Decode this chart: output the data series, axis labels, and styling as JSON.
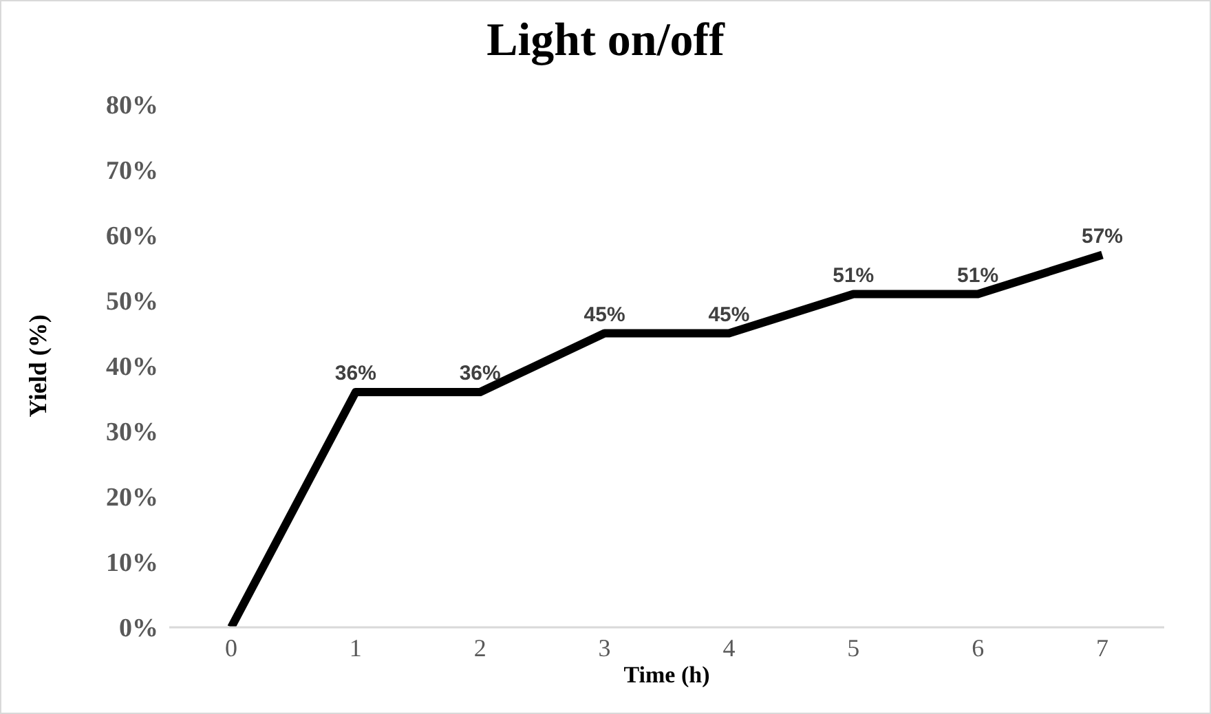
{
  "chart_data": {
    "type": "line",
    "title": "Light on/off",
    "xlabel": "Time (h)",
    "ylabel": "Yield (%)",
    "categories": [
      "0",
      "1",
      "2",
      "3",
      "4",
      "5",
      "6",
      "7"
    ],
    "series": [
      {
        "color": "#000000",
        "values": [
          0,
          36,
          36,
          45,
          45,
          51,
          51,
          57
        ],
        "value_labels": [
          null,
          "36%",
          "36%",
          "45%",
          "45%",
          "51%",
          "51%",
          "57%"
        ]
      }
    ],
    "ylim": [
      0,
      80
    ],
    "yticks": [
      {
        "value": 0,
        "label": "0%"
      },
      {
        "value": 10,
        "label": "10%"
      },
      {
        "value": 20,
        "label": "20%"
      },
      {
        "value": 30,
        "label": "30%"
      },
      {
        "value": 40,
        "label": "40%"
      },
      {
        "value": 50,
        "label": "50%"
      },
      {
        "value": 60,
        "label": "60%"
      },
      {
        "value": 70,
        "label": "70%"
      },
      {
        "value": 80,
        "label": "80%"
      }
    ],
    "marker": "none",
    "line_style": "solid"
  }
}
